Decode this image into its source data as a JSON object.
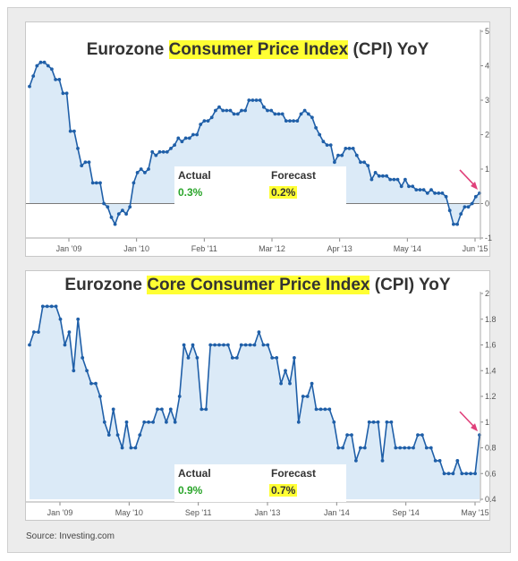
{
  "source": "Source: Investing.com",
  "chart_data": [
    {
      "type": "area",
      "title_parts": [
        "Eurozone ",
        "Consumer Price Index",
        " (CPI) YoY"
      ],
      "x_tick_labels": [
        "Jan '09",
        "Jan '10",
        "Feb '11",
        "Mar '12",
        "Apr '13",
        "May '14",
        "Jun '15"
      ],
      "y_ticks": [
        "5",
        "4",
        "3",
        "2",
        "1",
        "0",
        "-1"
      ],
      "ylim": [
        -1,
        5
      ],
      "values": [
        3.4,
        3.7,
        4.0,
        4.1,
        4.1,
        4.0,
        3.9,
        3.6,
        3.6,
        3.2,
        3.2,
        2.1,
        2.1,
        1.6,
        1.1,
        1.2,
        1.2,
        0.6,
        0.6,
        0.6,
        0.0,
        -0.1,
        -0.4,
        -0.6,
        -0.3,
        -0.2,
        -0.3,
        -0.1,
        0.6,
        0.9,
        1.0,
        0.9,
        1.0,
        1.5,
        1.4,
        1.5,
        1.5,
        1.5,
        1.6,
        1.7,
        1.9,
        1.8,
        1.9,
        1.9,
        2.0,
        2.0,
        2.3,
        2.4,
        2.4,
        2.5,
        2.7,
        2.8,
        2.7,
        2.7,
        2.7,
        2.6,
        2.6,
        2.7,
        2.7,
        3.0,
        3.0,
        3.0,
        3.0,
        2.8,
        2.7,
        2.7,
        2.6,
        2.6,
        2.6,
        2.4,
        2.4,
        2.4,
        2.4,
        2.6,
        2.7,
        2.6,
        2.5,
        2.2,
        2.0,
        1.8,
        1.7,
        1.7,
        1.2,
        1.4,
        1.4,
        1.6,
        1.6,
        1.6,
        1.4,
        1.2,
        1.2,
        1.1,
        0.7,
        0.9,
        0.8,
        0.8,
        0.8,
        0.7,
        0.7,
        0.7,
        0.5,
        0.7,
        0.5,
        0.5,
        0.4,
        0.4,
        0.4,
        0.3,
        0.4,
        0.3,
        0.3,
        0.3,
        0.2,
        -0.2,
        -0.6,
        -0.6,
        -0.3,
        -0.1,
        -0.1,
        0.0,
        0.2,
        0.3
      ],
      "actual_label": "Actual",
      "actual_value": "0.3%",
      "forecast_label": "Forecast",
      "forecast_value": "0.2%",
      "line_color": "#1f5fa8",
      "fill_color": "#dbeaf7",
      "arrow_color": "#e0407a",
      "grid": false
    },
    {
      "type": "area",
      "title_parts": [
        "Eurozone ",
        "Core Consumer Price Index",
        " (CPI) YoY"
      ],
      "x_tick_labels": [
        "Jan '09",
        "May '10",
        "Sep '11",
        "Jan '13",
        "Jan '14",
        "Sep '14",
        "May '15"
      ],
      "y_ticks": [
        "2",
        "1.8",
        "1.6",
        "1.4",
        "1.2",
        "1",
        "0.8",
        "0.6",
        "0.4"
      ],
      "ylim": [
        0.4,
        2.0
      ],
      "values": [
        1.6,
        1.7,
        1.7,
        1.9,
        1.9,
        1.9,
        1.9,
        1.8,
        1.6,
        1.7,
        1.4,
        1.8,
        1.5,
        1.4,
        1.3,
        1.3,
        1.2,
        1.0,
        0.9,
        1.1,
        0.9,
        0.8,
        1.0,
        0.8,
        0.8,
        0.9,
        1.0,
        1.0,
        1.0,
        1.1,
        1.1,
        1.0,
        1.1,
        1.0,
        1.2,
        1.6,
        1.5,
        1.6,
        1.5,
        1.1,
        1.1,
        1.6,
        1.6,
        1.6,
        1.6,
        1.6,
        1.5,
        1.5,
        1.6,
        1.6,
        1.6,
        1.6,
        1.7,
        1.6,
        1.6,
        1.5,
        1.5,
        1.3,
        1.4,
        1.3,
        1.5,
        1.0,
        1.2,
        1.2,
        1.3,
        1.1,
        1.1,
        1.1,
        1.1,
        1.0,
        0.8,
        0.8,
        0.9,
        0.9,
        0.7,
        0.8,
        0.8,
        1.0,
        1.0,
        1.0,
        0.7,
        1.0,
        1.0,
        0.8,
        0.8,
        0.8,
        0.8,
        0.8,
        0.9,
        0.9,
        0.8,
        0.8,
        0.7,
        0.7,
        0.6,
        0.6,
        0.6,
        0.7,
        0.6,
        0.6,
        0.6,
        0.6,
        0.9
      ],
      "actual_label": "Actual",
      "actual_value": "0.9%",
      "forecast_label": "Forecast",
      "forecast_value": "0.7%",
      "line_color": "#1f5fa8",
      "fill_color": "#dbeaf7",
      "arrow_color": "#e0407a",
      "grid": false
    }
  ]
}
